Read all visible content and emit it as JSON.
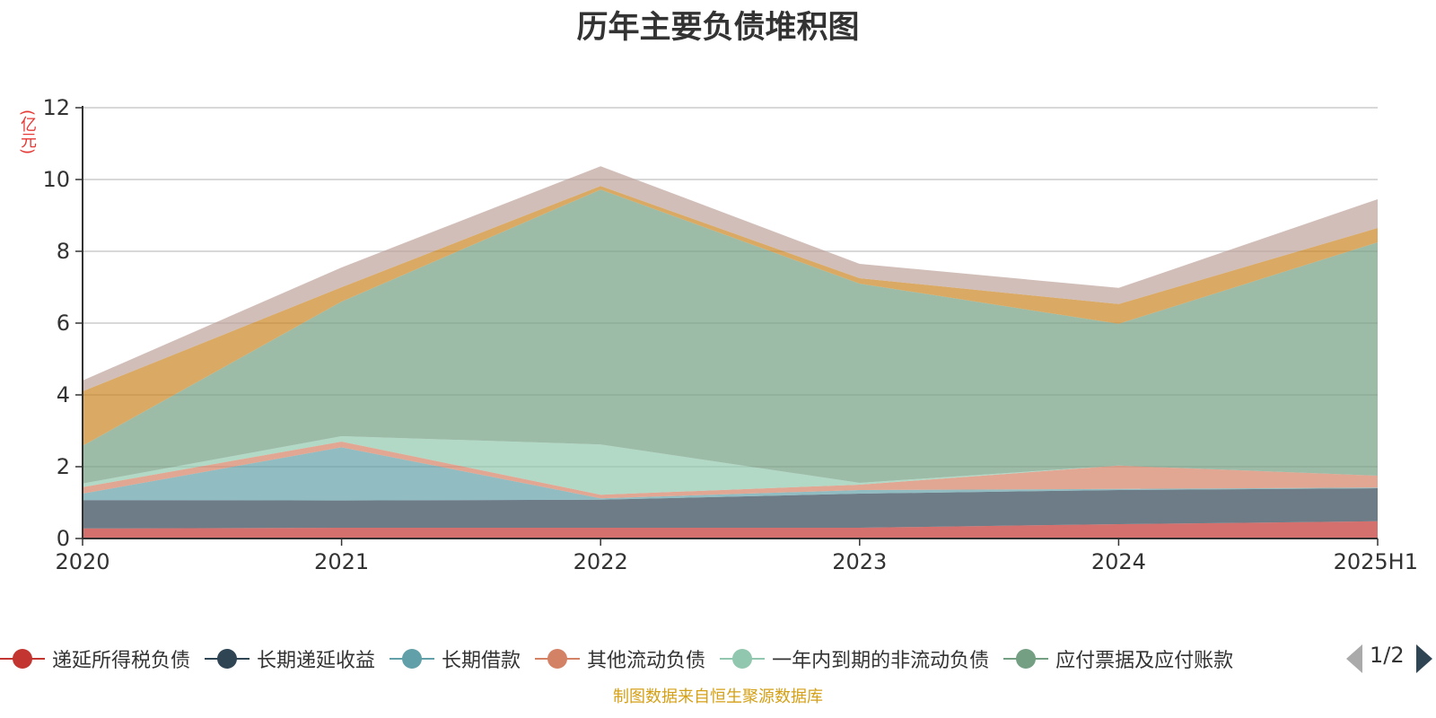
{
  "chart_data": {
    "type": "area",
    "stacked": true,
    "title": "历年主要负债堆积图",
    "unit_label": "(亿元)",
    "categories": [
      "2020",
      "2021",
      "2022",
      "2023",
      "2024",
      "2025H1"
    ],
    "ylim": [
      0,
      12
    ],
    "yticks": [
      "0",
      "2",
      "4",
      "6",
      "8",
      "10",
      "12"
    ],
    "grid": true,
    "legend_position": "bottom",
    "series": [
      {
        "name": "递延所得税负债",
        "color": "#c23531",
        "values": [
          0.28,
          0.3,
          0.3,
          0.3,
          0.4,
          0.48
        ]
      },
      {
        "name": "长期递延收益",
        "color": "#2f4554",
        "values": [
          0.79,
          0.76,
          0.78,
          0.95,
          0.95,
          0.92
        ]
      },
      {
        "name": "长期借款",
        "color": "#61a0a8",
        "values": [
          0.18,
          1.48,
          0.04,
          0.1,
          0.03,
          0.02
        ]
      },
      {
        "name": "其他流动负债",
        "color": "#d48265",
        "values": [
          0.18,
          0.16,
          0.1,
          0.15,
          0.65,
          0.33
        ]
      },
      {
        "name": "一年内到期的非流动负债",
        "color": "#91c7ae",
        "values": [
          0.1,
          0.15,
          1.4,
          0.05,
          0.0,
          0.0
        ]
      },
      {
        "name": "应付票据及应付账款",
        "color": "#749f83",
        "values": [
          1.05,
          3.75,
          7.1,
          5.55,
          3.95,
          6.5
        ]
      },
      {
        "name": "",
        "color": "#ca8622",
        "values": [
          1.52,
          0.4,
          0.1,
          0.15,
          0.55,
          0.4
        ]
      },
      {
        "name": "",
        "color": "#bda29a",
        "values": [
          0.3,
          0.55,
          0.55,
          0.4,
          0.45,
          0.8
        ]
      }
    ],
    "legend_page": "1/2",
    "source_note": "制图数据来自恒生聚源数据库"
  }
}
